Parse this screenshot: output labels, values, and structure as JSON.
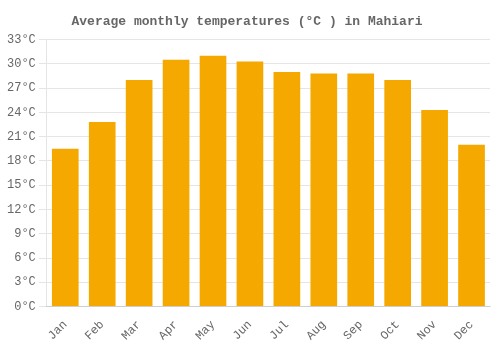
{
  "chart_data": {
    "type": "bar",
    "title": "Average monthly temperatures (°C ) in Mahiari",
    "categories": [
      "Jan",
      "Feb",
      "Mar",
      "Apr",
      "May",
      "Jun",
      "Jul",
      "Aug",
      "Sep",
      "Oct",
      "Nov",
      "Dec"
    ],
    "values": [
      19.5,
      22.8,
      28.0,
      30.5,
      31.0,
      30.3,
      29.0,
      28.8,
      28.8,
      28.0,
      24.3,
      20.0
    ],
    "color": "#F5A800",
    "ylim": [
      0,
      33
    ],
    "yticks": [
      {
        "value": 0,
        "label": "0°C"
      },
      {
        "value": 3,
        "label": "3°C"
      },
      {
        "value": 6,
        "label": "6°C"
      },
      {
        "value": 9,
        "label": "9°C"
      },
      {
        "value": 12,
        "label": "12°C"
      },
      {
        "value": 15,
        "label": "15°C"
      },
      {
        "value": 18,
        "label": "18°C"
      },
      {
        "value": 21,
        "label": "21°C"
      },
      {
        "value": 24,
        "label": "24°C"
      },
      {
        "value": 27,
        "label": "27°C"
      },
      {
        "value": 30,
        "label": "30°C"
      },
      {
        "value": 33,
        "label": "33°C"
      }
    ],
    "grid": true
  }
}
